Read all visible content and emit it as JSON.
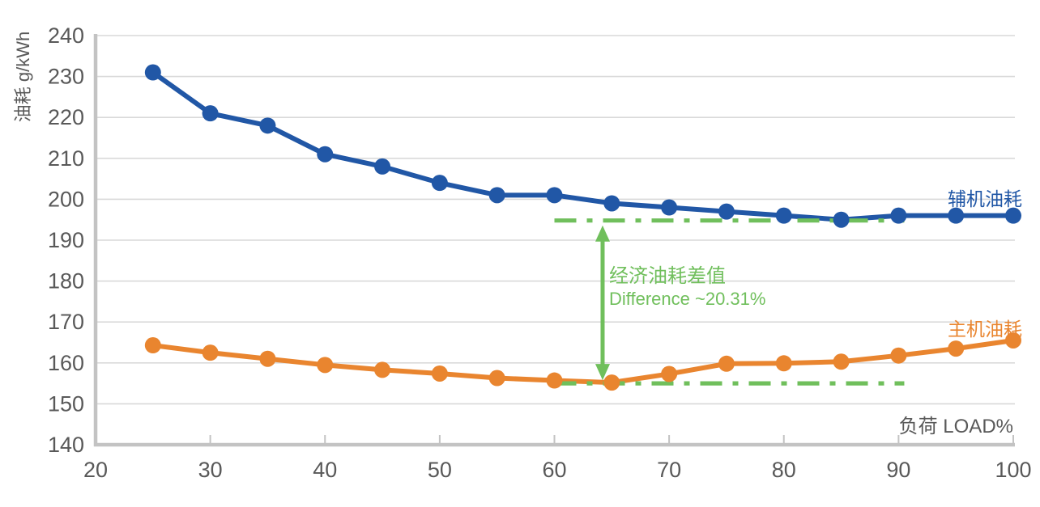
{
  "chart_data": {
    "type": "line",
    "ylabel": "油耗 g/kWh",
    "xlabel": "负荷 LOAD%",
    "xlim": [
      20,
      100
    ],
    "ylim": [
      140,
      240
    ],
    "x_ticks": [
      20,
      30,
      40,
      50,
      60,
      70,
      80,
      90,
      100
    ],
    "y_ticks": [
      140,
      150,
      160,
      170,
      180,
      190,
      200,
      210,
      220,
      230,
      240
    ],
    "grid": "horizontal",
    "legend_position": "line-end-labels",
    "x": [
      25,
      30,
      35,
      40,
      45,
      50,
      55,
      60,
      65,
      70,
      75,
      80,
      85,
      90,
      95,
      100
    ],
    "series": [
      {
        "name": "辅机油耗",
        "color": "#2157A6",
        "values": [
          231,
          221,
          218,
          211,
          208,
          204,
          201,
          201,
          199,
          198,
          197,
          196,
          195,
          196,
          196,
          196
        ]
      },
      {
        "name": "主机油耗",
        "color": "#E9852F",
        "values": [
          164.3,
          162.5,
          161,
          159.5,
          158.3,
          157.4,
          156.3,
          155.7,
          155.2,
          157.3,
          159.8,
          159.9,
          160.3,
          161.8,
          163.5,
          165.5
        ]
      }
    ],
    "annotation": {
      "label_cn": "经济油耗差值",
      "label_en": "Difference ~20.31%",
      "color": "#70BF5C",
      "upper_line_y": 194.8,
      "lower_line_y": 155.0,
      "x_start": 60,
      "x_end": 90.5,
      "arrow_x": 64.2
    }
  },
  "colors": {
    "background": "#FFFFFF",
    "gridline": "#D9D9D9",
    "axis": "#C3C3C3",
    "tick_text": "#595959"
  }
}
